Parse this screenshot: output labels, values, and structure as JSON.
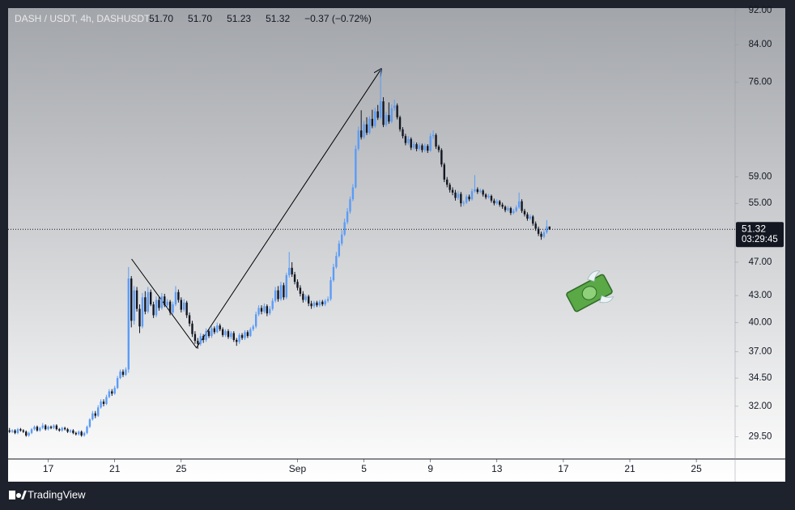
{
  "chart_data": {
    "type": "candlestick",
    "title": "DASH / USDT, 4h, DASHUSDT",
    "header_values": [
      "51.70",
      "51.70",
      "51.23",
      "51.32",
      "−0.37 (−0.72%)"
    ],
    "price_label": "51.32",
    "countdown": "03:29:45",
    "brand": "TradingView",
    "up_color": "#5b9cf6",
    "down_color": "#131722",
    "log_scale": true,
    "ylim": [
      27.8,
      92.6
    ],
    "yticks": [
      {
        "value": 29.5,
        "label": "29.50"
      },
      {
        "value": 32,
        "label": "32.00"
      },
      {
        "value": 34.5,
        "label": "34.50"
      },
      {
        "value": 37,
        "label": "37.00"
      },
      {
        "value": 40,
        "label": "40.00"
      },
      {
        "value": 43,
        "label": "43.00"
      },
      {
        "value": 47,
        "label": "47.00"
      },
      {
        "value": 55,
        "label": "55.00"
      },
      {
        "value": 59,
        "label": "59.00"
      },
      {
        "value": 76,
        "label": "76.00"
      },
      {
        "value": 84,
        "label": "84.00"
      },
      {
        "value": 92,
        "label": "92.00"
      }
    ],
    "xlim": [
      -0.5,
      262
    ],
    "xticks": [
      {
        "value": 14,
        "label": "17"
      },
      {
        "value": 38,
        "label": "21"
      },
      {
        "value": 62,
        "label": "25"
      },
      {
        "value": 104,
        "label": "Sep"
      },
      {
        "value": 128,
        "label": "5"
      },
      {
        "value": 152,
        "label": "9"
      },
      {
        "value": 176,
        "label": "13"
      },
      {
        "value": 200,
        "label": "17"
      },
      {
        "value": 224,
        "label": "21"
      },
      {
        "value": 248,
        "label": "25"
      }
    ],
    "drawing": {
      "x": [
        44.1,
        67.5,
        134.2
      ],
      "y": [
        47.4,
        37.4,
        78.7
      ]
    },
    "ohlc": [
      [
        30.0,
        30.2,
        29.8,
        29.9
      ],
      [
        29.9,
        30.1,
        29.8,
        30.0
      ],
      [
        30.0,
        30.1,
        29.7,
        29.8
      ],
      [
        29.8,
        30.2,
        29.7,
        30.1
      ],
      [
        30.1,
        30.2,
        29.9,
        30.0
      ],
      [
        30.0,
        30.1,
        29.8,
        29.9
      ],
      [
        29.9,
        30.0,
        29.5,
        29.6
      ],
      [
        29.6,
        29.9,
        29.5,
        29.8
      ],
      [
        29.8,
        30.2,
        29.7,
        30.1
      ],
      [
        30.1,
        30.4,
        30.0,
        30.3
      ],
      [
        30.3,
        30.4,
        29.9,
        30.0
      ],
      [
        30.0,
        30.3,
        29.9,
        30.2
      ],
      [
        30.2,
        30.6,
        30.1,
        30.4
      ],
      [
        30.4,
        30.5,
        30.0,
        30.1
      ],
      [
        30.1,
        30.4,
        30.0,
        30.3
      ],
      [
        30.3,
        30.4,
        30.1,
        30.2
      ],
      [
        30.2,
        30.5,
        30.1,
        30.4
      ],
      [
        30.4,
        30.5,
        30.0,
        30.1
      ],
      [
        30.1,
        30.2,
        29.9,
        30.0
      ],
      [
        30.0,
        30.3,
        29.9,
        30.2
      ],
      [
        30.2,
        30.3,
        30.0,
        30.1
      ],
      [
        30.1,
        30.2,
        29.8,
        29.9
      ],
      [
        29.9,
        30.1,
        29.8,
        30.0
      ],
      [
        30.0,
        30.1,
        29.7,
        29.8
      ],
      [
        29.8,
        29.9,
        29.6,
        29.7
      ],
      [
        29.7,
        30.0,
        29.6,
        29.9
      ],
      [
        29.9,
        30.0,
        29.5,
        29.6
      ],
      [
        29.6,
        29.9,
        29.5,
        29.8
      ],
      [
        29.8,
        30.4,
        29.7,
        30.3
      ],
      [
        30.3,
        31.0,
        30.2,
        30.9
      ],
      [
        30.9,
        31.6,
        30.8,
        31.4
      ],
      [
        31.4,
        31.6,
        31.0,
        31.2
      ],
      [
        31.2,
        32.1,
        31.1,
        31.9
      ],
      [
        31.9,
        32.6,
        31.8,
        32.4
      ],
      [
        32.4,
        32.6,
        32.0,
        32.2
      ],
      [
        32.2,
        33.0,
        32.1,
        32.8
      ],
      [
        32.8,
        33.5,
        32.7,
        33.3
      ],
      [
        33.3,
        33.5,
        32.9,
        33.1
      ],
      [
        33.1,
        33.8,
        33.0,
        33.6
      ],
      [
        33.6,
        34.7,
        33.5,
        34.5
      ],
      [
        34.5,
        35.3,
        34.4,
        35.1
      ],
      [
        35.1,
        35.3,
        34.6,
        34.8
      ],
      [
        34.8,
        35.5,
        34.7,
        35.3
      ],
      [
        35.3,
        46.4,
        35.0,
        45.0
      ],
      [
        45.0,
        45.3,
        39.5,
        40.2
      ],
      [
        40.2,
        44.1,
        39.8,
        43.6
      ],
      [
        43.6,
        44.0,
        41.2,
        41.5
      ],
      [
        41.5,
        42.0,
        38.9,
        39.6
      ],
      [
        39.6,
        43.3,
        39.4,
        42.8
      ],
      [
        42.8,
        43.5,
        40.9,
        41.2
      ],
      [
        41.2,
        44.0,
        41.0,
        43.4
      ],
      [
        43.4,
        43.7,
        41.8,
        42.0
      ],
      [
        42.0,
        42.3,
        40.5,
        40.8
      ],
      [
        40.8,
        42.9,
        40.6,
        42.5
      ],
      [
        42.5,
        42.8,
        41.3,
        41.6
      ],
      [
        41.6,
        43.3,
        41.4,
        42.9
      ],
      [
        42.9,
        43.2,
        41.7,
        41.9
      ],
      [
        41.9,
        42.6,
        41.6,
        42.3
      ],
      [
        42.3,
        42.5,
        40.8,
        41.1
      ],
      [
        41.1,
        42.3,
        40.9,
        42.0
      ],
      [
        42.0,
        44.1,
        41.8,
        43.4
      ],
      [
        43.4,
        43.7,
        42.2,
        42.5
      ],
      [
        42.5,
        42.8,
        41.1,
        41.4
      ],
      [
        41.4,
        42.6,
        41.2,
        42.2
      ],
      [
        42.2,
        42.4,
        40.5,
        40.8
      ],
      [
        40.8,
        41.1,
        39.6,
        39.9
      ],
      [
        39.9,
        40.2,
        38.5,
        38.8
      ],
      [
        38.8,
        39.1,
        37.8,
        38.1
      ],
      [
        38.1,
        38.4,
        37.3,
        37.8
      ],
      [
        37.8,
        38.9,
        37.6,
        38.6
      ],
      [
        38.6,
        38.8,
        37.9,
        38.2
      ],
      [
        38.2,
        39.4,
        38.0,
        39.1
      ],
      [
        39.1,
        39.3,
        38.4,
        38.6
      ],
      [
        38.6,
        39.6,
        38.4,
        39.4
      ],
      [
        39.4,
        39.6,
        38.8,
        39.0
      ],
      [
        39.0,
        40.0,
        38.9,
        39.7
      ],
      [
        39.7,
        39.9,
        39.1,
        39.3
      ],
      [
        39.3,
        39.5,
        38.5,
        38.7
      ],
      [
        38.7,
        39.3,
        38.5,
        39.1
      ],
      [
        39.1,
        39.3,
        38.3,
        38.5
      ],
      [
        38.5,
        39.1,
        38.3,
        38.9
      ],
      [
        38.9,
        39.1,
        38.0,
        38.2
      ],
      [
        38.2,
        38.4,
        37.6,
        38.0
      ],
      [
        38.0,
        38.9,
        37.8,
        38.7
      ],
      [
        38.7,
        38.9,
        38.2,
        38.4
      ],
      [
        38.4,
        39.2,
        38.2,
        39.0
      ],
      [
        39.0,
        39.2,
        38.4,
        38.6
      ],
      [
        38.6,
        39.5,
        38.5,
        39.3
      ],
      [
        39.3,
        39.8,
        39.1,
        39.6
      ],
      [
        39.6,
        41.2,
        39.4,
        40.9
      ],
      [
        40.9,
        41.9,
        40.7,
        41.6
      ],
      [
        41.6,
        41.9,
        40.9,
        41.2
      ],
      [
        41.2,
        42.1,
        41.0,
        41.8
      ],
      [
        41.8,
        42.0,
        40.7,
        41.0
      ],
      [
        41.0,
        41.8,
        40.8,
        41.5
      ],
      [
        41.5,
        42.7,
        41.3,
        42.4
      ],
      [
        42.4,
        44.0,
        42.2,
        43.6
      ],
      [
        43.6,
        44.1,
        42.3,
        42.6
      ],
      [
        42.6,
        44.6,
        42.4,
        44.2
      ],
      [
        44.2,
        44.5,
        42.5,
        42.8
      ],
      [
        42.8,
        45.7,
        42.6,
        45.4
      ],
      [
        45.4,
        48.3,
        45.1,
        46.3
      ],
      [
        46.3,
        47.0,
        45.2,
        45.5
      ],
      [
        45.5,
        45.8,
        44.3,
        44.6
      ],
      [
        44.6,
        44.9,
        43.6,
        43.9
      ],
      [
        43.9,
        44.2,
        42.9,
        43.2
      ],
      [
        43.2,
        43.5,
        42.2,
        42.5
      ],
      [
        42.5,
        43.1,
        42.3,
        42.9
      ],
      [
        42.9,
        43.1,
        41.8,
        42.1
      ],
      [
        42.1,
        42.4,
        41.5,
        41.8
      ],
      [
        41.8,
        42.4,
        41.6,
        42.2
      ],
      [
        42.2,
        42.4,
        41.7,
        41.9
      ],
      [
        41.9,
        42.5,
        41.7,
        42.3
      ],
      [
        42.3,
        42.5,
        41.8,
        42.0
      ],
      [
        42.0,
        42.6,
        41.8,
        42.4
      ],
      [
        42.4,
        42.9,
        42.2,
        42.6
      ],
      [
        42.6,
        45.2,
        42.4,
        44.8
      ],
      [
        44.8,
        46.8,
        44.6,
        46.4
      ],
      [
        46.4,
        48.3,
        46.2,
        47.8
      ],
      [
        47.8,
        49.8,
        47.6,
        49.4
      ],
      [
        49.4,
        51.2,
        49.1,
        50.6
      ],
      [
        50.6,
        52.8,
        50.4,
        52.3
      ],
      [
        52.3,
        54.3,
        52.0,
        53.8
      ],
      [
        53.8,
        56.0,
        53.5,
        55.6
      ],
      [
        55.6,
        57.9,
        55.3,
        57.4
      ],
      [
        57.4,
        64.2,
        57.2,
        63.6
      ],
      [
        63.6,
        67.5,
        63.3,
        66.8
      ],
      [
        66.8,
        70.5,
        65.2,
        65.6
      ],
      [
        65.6,
        68.5,
        65.3,
        67.9
      ],
      [
        67.9,
        69.2,
        66.0,
        66.4
      ],
      [
        66.4,
        69.4,
        66.1,
        68.9
      ],
      [
        68.9,
        70.6,
        67.2,
        67.6
      ],
      [
        67.6,
        71.0,
        67.3,
        70.3
      ],
      [
        70.3,
        71.5,
        68.7,
        69.1
      ],
      [
        69.1,
        78.7,
        68.8,
        72.2
      ],
      [
        72.2,
        73.0,
        67.4,
        67.8
      ],
      [
        67.8,
        70.2,
        67.5,
        69.6
      ],
      [
        69.6,
        72.0,
        68.0,
        68.4
      ],
      [
        68.4,
        71.6,
        68.1,
        70.9
      ],
      [
        70.9,
        72.5,
        70.4,
        71.4
      ],
      [
        71.4,
        71.8,
        68.8,
        69.2
      ],
      [
        69.2,
        69.5,
        66.6,
        67.0
      ],
      [
        67.0,
        67.4,
        65.4,
        65.8
      ],
      [
        65.8,
        66.2,
        64.2,
        64.6
      ],
      [
        64.6,
        65.8,
        64.3,
        65.3
      ],
      [
        65.3,
        65.6,
        63.4,
        63.8
      ],
      [
        63.8,
        64.9,
        63.5,
        64.4
      ],
      [
        64.4,
        64.7,
        63.2,
        63.6
      ],
      [
        63.6,
        64.6,
        63.3,
        64.2
      ],
      [
        64.2,
        64.5,
        63.0,
        63.4
      ],
      [
        63.4,
        64.5,
        63.1,
        64.1
      ],
      [
        64.1,
        64.4,
        62.9,
        63.3
      ],
      [
        63.3,
        66.3,
        63.1,
        65.8
      ],
      [
        65.8,
        66.8,
        65.3,
        66.0
      ],
      [
        66.0,
        66.3,
        63.6,
        64.0
      ],
      [
        64.0,
        64.3,
        63.0,
        63.4
      ],
      [
        63.4,
        63.7,
        60.6,
        61.0
      ],
      [
        61.0,
        61.3,
        58.2,
        58.6
      ],
      [
        58.6,
        59.0,
        57.4,
        57.8
      ],
      [
        57.8,
        58.1,
        56.6,
        57.0
      ],
      [
        57.0,
        57.4,
        56.2,
        56.6
      ],
      [
        56.6,
        57.0,
        55.4,
        55.8
      ],
      [
        55.8,
        56.8,
        55.5,
        56.4
      ],
      [
        56.4,
        56.7,
        54.5,
        55.0
      ],
      [
        55.0,
        55.4,
        54.6,
        55.1
      ],
      [
        55.1,
        56.3,
        54.9,
        56.0
      ],
      [
        56.0,
        56.3,
        55.3,
        55.6
      ],
      [
        55.6,
        57.2,
        55.4,
        56.8
      ],
      [
        56.8,
        59.3,
        56.6,
        57.1
      ],
      [
        57.1,
        57.4,
        56.4,
        56.7
      ],
      [
        56.7,
        57.2,
        56.5,
        56.9
      ],
      [
        56.9,
        57.1,
        56.0,
        56.3
      ],
      [
        56.3,
        56.5,
        55.6,
        55.9
      ],
      [
        55.9,
        56.4,
        55.7,
        56.1
      ],
      [
        56.1,
        56.3,
        55.1,
        55.4
      ],
      [
        55.4,
        55.7,
        54.7,
        55.0
      ],
      [
        55.0,
        55.6,
        54.8,
        55.3
      ],
      [
        55.3,
        55.5,
        54.5,
        54.8
      ],
      [
        54.8,
        55.1,
        54.2,
        54.5
      ],
      [
        54.5,
        54.7,
        53.7,
        54.0
      ],
      [
        54.0,
        54.6,
        53.8,
        54.3
      ],
      [
        54.3,
        54.5,
        53.3,
        53.6
      ],
      [
        53.6,
        54.2,
        53.4,
        53.9
      ],
      [
        53.9,
        54.7,
        53.7,
        54.4
      ],
      [
        54.4,
        56.6,
        54.2,
        55.3
      ],
      [
        55.3,
        55.6,
        53.6,
        53.9
      ],
      [
        53.9,
        54.2,
        53.1,
        53.4
      ],
      [
        53.4,
        53.7,
        52.5,
        52.8
      ],
      [
        52.8,
        53.4,
        52.6,
        53.1
      ],
      [
        53.1,
        53.3,
        51.8,
        52.1
      ],
      [
        52.1,
        52.4,
        51.1,
        51.4
      ],
      [
        51.4,
        51.7,
        50.4,
        50.7
      ],
      [
        50.7,
        51.0,
        49.9,
        50.3
      ],
      [
        50.3,
        51.2,
        50.1,
        50.9
      ],
      [
        50.9,
        52.6,
        50.7,
        51.7
      ],
      [
        51.7,
        51.7,
        51.23,
        51.32
      ]
    ]
  }
}
